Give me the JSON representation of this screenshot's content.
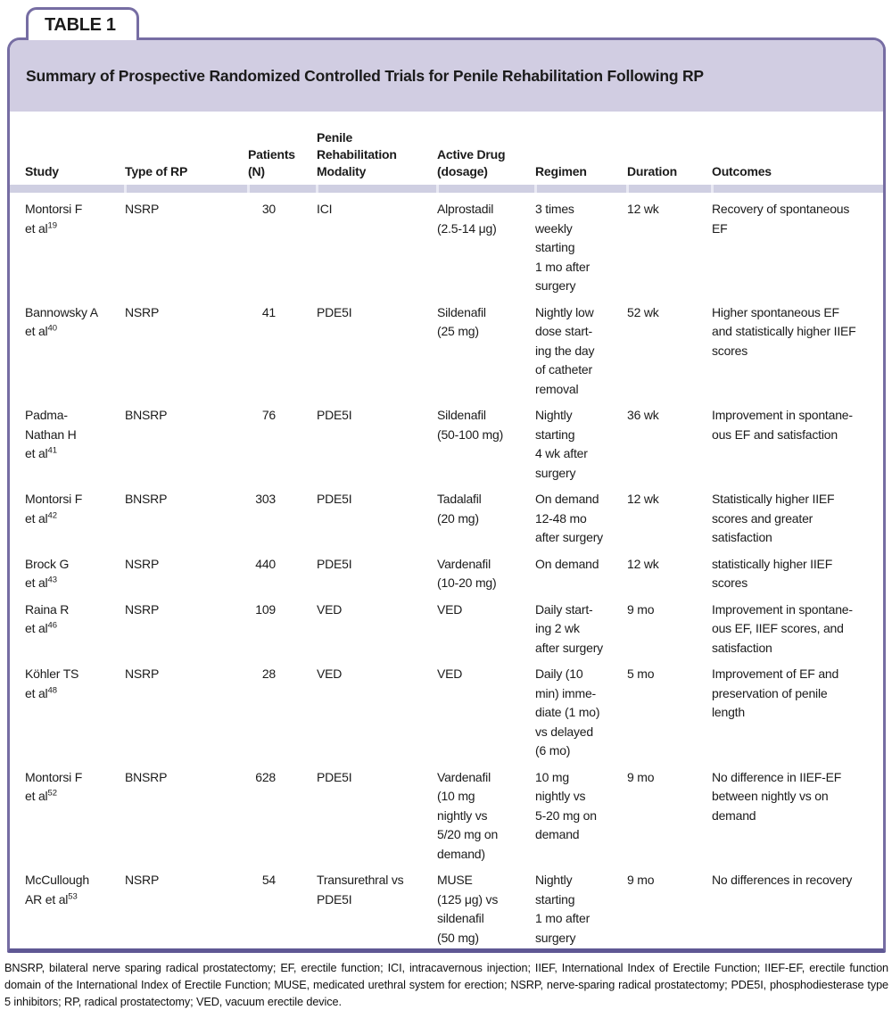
{
  "tab_label": "TABLE 1",
  "title": "Summary of Prospective Randomized Controlled Trials for Penile Rehabilitation Following RP",
  "colors": {
    "accent": "#766da3",
    "accent-dark": "#5f5894",
    "banner": "#d1cde2",
    "divider": "#cfcfe2",
    "divider-gap": "#e9e9f3",
    "text": "#1b1b1b"
  },
  "table": {
    "columns": [
      {
        "label": "Study"
      },
      {
        "label": "Type of RP"
      },
      {
        "label": "Patients\n(N)"
      },
      {
        "label": "Penile\nRehabilitation\nModality"
      },
      {
        "label": "Active Drug\n(dosage)"
      },
      {
        "label": "Regimen"
      },
      {
        "label": "Duration"
      },
      {
        "label": "Outcomes"
      }
    ],
    "rows": [
      {
        "study": "Montorsi F\net al",
        "ref": "19",
        "type_of_rp": "NSRP",
        "patients": "30",
        "modality": "ICI",
        "active_drug": "Alprostadil\n(2.5-14 μg)",
        "regimen": "3 times\nweekly\nstarting\n1 mo after\nsurgery",
        "duration": "12 wk",
        "outcomes": "Recovery of spontaneous\nEF"
      },
      {
        "study": "Bannowsky A\net al",
        "ref": "40",
        "type_of_rp": "NSRP",
        "patients": "41",
        "modality": "PDE5I",
        "active_drug": "Sildenafil\n(25 mg)",
        "regimen": "Nightly low\ndose start-\ning the day\nof catheter\nremoval",
        "duration": "52 wk",
        "outcomes": "Higher spontaneous EF\nand statistically higher IIEF\nscores"
      },
      {
        "study": "Padma-\nNathan H\net al",
        "ref": "41",
        "type_of_rp": "BNSRP",
        "patients": "76",
        "modality": "PDE5I",
        "active_drug": "Sildenafil\n(50-100 mg)",
        "regimen": "Nightly\nstarting\n4 wk after\nsurgery",
        "duration": "36 wk",
        "outcomes": "Improvement in spontane-\nous EF and satisfaction"
      },
      {
        "study": "Montorsi F\net al",
        "ref": "42",
        "type_of_rp": "BNSRP",
        "patients": "303",
        "modality": "PDE5I",
        "active_drug": "Tadalafil\n(20 mg)",
        "regimen": "On demand\n12-48 mo\nafter surgery",
        "duration": "12 wk",
        "outcomes": "Statistically higher IIEF\nscores and greater\nsatisfaction"
      },
      {
        "study": "Brock G\net al",
        "ref": "43",
        "type_of_rp": "NSRP",
        "patients": "440",
        "modality": "PDE5I",
        "active_drug": "Vardenafil\n(10-20 mg)",
        "regimen": "On demand",
        "duration": "12 wk",
        "outcomes": "statistically higher IIEF\nscores"
      },
      {
        "study": "Raina R\net al",
        "ref": "46",
        "type_of_rp": "NSRP",
        "patients": "109",
        "modality": "VED",
        "active_drug": "VED",
        "regimen": "Daily start-\ning 2 wk\nafter surgery",
        "duration": "9 mo",
        "outcomes": "Improvement in spontane-\nous EF, IIEF scores, and\nsatisfaction"
      },
      {
        "study": "Köhler TS\net al",
        "ref": "48",
        "type_of_rp": "NSRP",
        "patients": "28",
        "modality": "VED",
        "active_drug": "VED",
        "regimen": "Daily (10\nmin) imme-\ndiate (1 mo)\nvs delayed\n(6 mo)",
        "duration": "5 mo",
        "outcomes": "Improvement of EF and\npreservation of penile\nlength"
      },
      {
        "study": "Montorsi F\net al",
        "ref": "52",
        "type_of_rp": "BNSRP",
        "patients": "628",
        "modality": "PDE5I",
        "active_drug": "Vardenafil\n(10 mg\nnightly vs\n5/20 mg on\ndemand)",
        "regimen": "10 mg\nnightly vs\n5-20 mg on\ndemand",
        "duration": "9 mo",
        "outcomes": "No difference in IIEF-EF\nbetween nightly vs on\ndemand"
      },
      {
        "study": "McCullough\nAR et al",
        "ref": "53",
        "type_of_rp": "NSRP",
        "patients": "54",
        "modality": "Transurethral vs\nPDE5I",
        "active_drug": "MUSE\n(125 μg) vs\nsildenafil\n(50 mg)",
        "regimen": "Nightly\nstarting\n1 mo after\nsurgery",
        "duration": "9 mo",
        "outcomes": "No differences in recovery"
      }
    ]
  },
  "footnote": "BNSRP, bilateral nerve sparing radical prostatectomy; EF, erectile function; ICI, intracavernous injection; IIEF, International Index of Erectile Function; IIEF-EF, erectile function domain of the International Index of Erectile Function; MUSE, medicated urethral system for erection; NSRP, nerve-sparing radical prostatectomy; PDE5I, phosphodiesterase type 5 inhibitors; RP, radical prostatectomy; VED, vacuum erectile device."
}
